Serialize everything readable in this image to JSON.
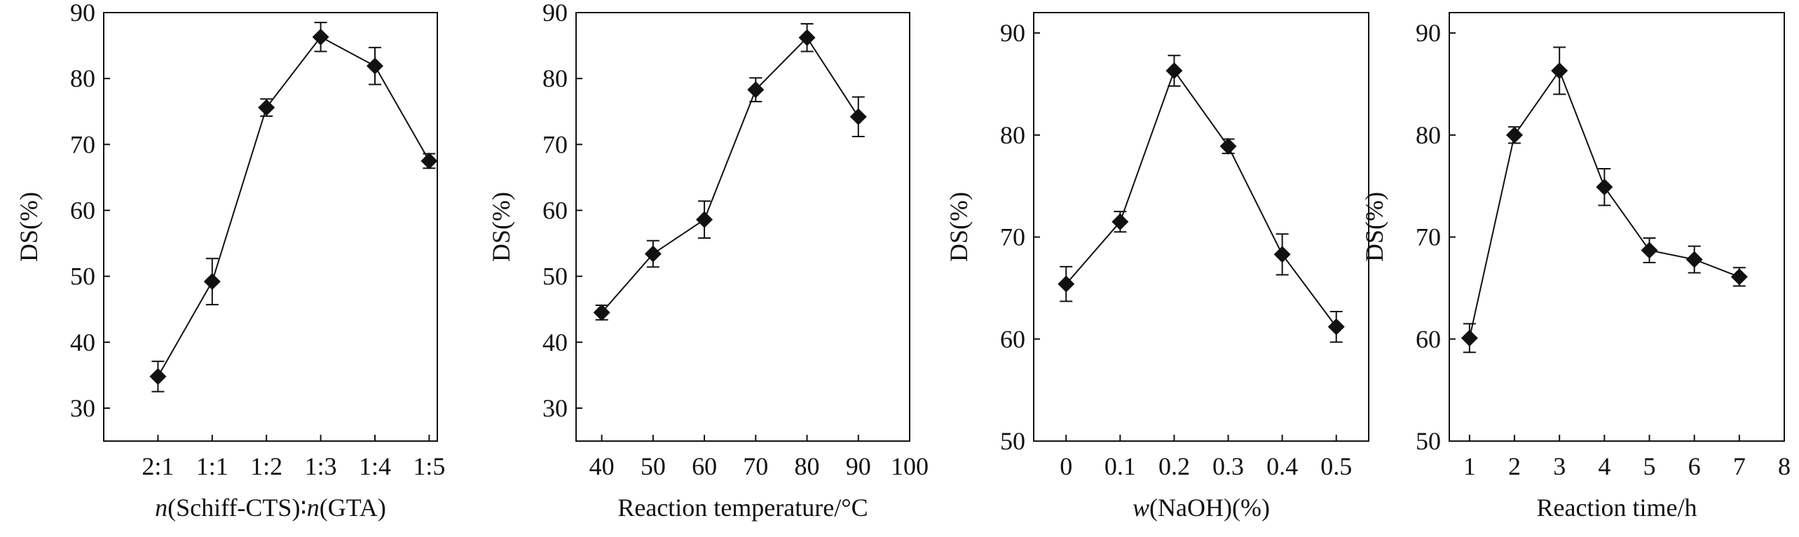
{
  "figure": {
    "line_color": "#111111",
    "background": "#ffffff"
  },
  "chart_data": [
    {
      "type": "line",
      "title": "",
      "xlabel": "n(Schiff-CTS)∶n(GTA)",
      "xlabel_parts": [
        {
          "text": "n",
          "italic": true
        },
        {
          "text": "(Schiff-CTS)∶",
          "italic": false
        },
        {
          "text": "n",
          "italic": true
        },
        {
          "text": "(GTA)",
          "italic": false
        }
      ],
      "ylabel": "DS(%)",
      "categorical_x": true,
      "xlim": [
        0,
        6.15
      ],
      "ylim": [
        25,
        90
      ],
      "x_ticks": [
        1,
        2,
        3,
        4,
        5,
        6
      ],
      "x_tick_labels": [
        "2:1",
        "1:1",
        "1:2",
        "1:3",
        "1:4",
        "1:5"
      ],
      "y_ticks": [
        30,
        40,
        50,
        60,
        70,
        80,
        90
      ],
      "x": [
        1,
        2,
        3,
        4,
        5,
        6
      ],
      "categories": [
        "2:1",
        "1:1",
        "1:2",
        "1:3",
        "1:4",
        "1:5"
      ],
      "values": [
        34.8,
        49.2,
        75.6,
        86.3,
        81.9,
        67.5
      ],
      "errors": [
        2.3,
        3.5,
        1.3,
        2.2,
        2.8,
        1.1
      ]
    },
    {
      "type": "line",
      "title": "",
      "xlabel": "Reaction temperature/°C",
      "xlabel_parts": [
        {
          "text": "Reaction temperature/°C",
          "italic": false
        }
      ],
      "ylabel": "DS(%)",
      "categorical_x": false,
      "xlim": [
        35,
        100
      ],
      "ylim": [
        25,
        90
      ],
      "x_ticks": [
        40,
        50,
        60,
        70,
        80,
        90,
        100
      ],
      "x_tick_labels": [
        "40",
        "50",
        "60",
        "70",
        "80",
        "90",
        "100"
      ],
      "y_ticks": [
        30,
        40,
        50,
        60,
        70,
        80,
        90
      ],
      "x": [
        40,
        50,
        60,
        70,
        80,
        90
      ],
      "values": [
        44.5,
        53.4,
        58.6,
        78.3,
        86.2,
        74.2
      ],
      "errors": [
        1.1,
        2.0,
        2.8,
        1.8,
        2.1,
        3.0
      ]
    },
    {
      "type": "line",
      "title": "",
      "xlabel": "w(NaOH)(%)",
      "xlabel_parts": [
        {
          "text": "w",
          "italic": true
        },
        {
          "text": "(NaOH)(%)",
          "italic": false
        }
      ],
      "ylabel": "DS(%)",
      "categorical_x": false,
      "xlim": [
        -0.06,
        0.56
      ],
      "ylim": [
        50,
        92
      ],
      "x_ticks": [
        0,
        0.1,
        0.2,
        0.3,
        0.4,
        0.5
      ],
      "x_tick_labels": [
        "0",
        "0.1",
        "0.2",
        "0.3",
        "0.4",
        "0.5"
      ],
      "y_ticks": [
        50,
        60,
        70,
        80,
        90
      ],
      "x": [
        0,
        0.1,
        0.2,
        0.3,
        0.4,
        0.5
      ],
      "values": [
        65.4,
        71.5,
        86.3,
        78.9,
        68.3,
        61.2
      ],
      "errors": [
        1.7,
        1.0,
        1.5,
        0.7,
        2.0,
        1.5
      ]
    },
    {
      "type": "line",
      "title": "",
      "xlabel": "Reaction time/h",
      "xlabel_parts": [
        {
          "text": "Reaction time/h",
          "italic": false
        }
      ],
      "ylabel": "DS(%)",
      "categorical_x": false,
      "xlim": [
        0.55,
        8.0
      ],
      "ylim": [
        50,
        92
      ],
      "x_ticks": [
        1,
        2,
        3,
        4,
        5,
        6,
        7,
        8
      ],
      "x_tick_labels": [
        "1",
        "2",
        "3",
        "4",
        "5",
        "6",
        "7",
        "8"
      ],
      "y_ticks": [
        50,
        60,
        70,
        80,
        90
      ],
      "x": [
        1,
        2,
        3,
        4,
        5,
        6,
        7
      ],
      "values": [
        60.1,
        80.0,
        86.3,
        74.9,
        68.7,
        67.8,
        66.1
      ],
      "errors": [
        1.4,
        0.8,
        2.3,
        1.8,
        1.2,
        1.3,
        0.9
      ]
    }
  ]
}
